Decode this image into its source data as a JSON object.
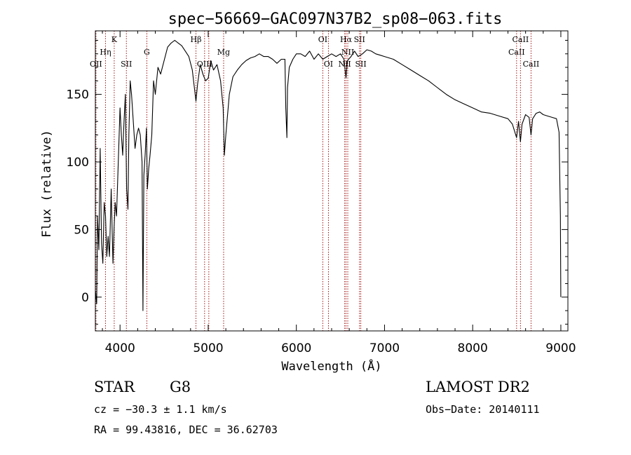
{
  "chart_data": {
    "type": "line",
    "title": "spec−56669−GAC097N37B2_sp08−063.fits",
    "xlabel": "Wavelength (Å)",
    "ylabel": "Flux (relative)",
    "xlim": [
      3720,
      9080
    ],
    "ylim": [
      -25,
      197
    ],
    "xticks": [
      4000,
      5000,
      6000,
      7000,
      8000,
      9000
    ],
    "yticks": [
      0,
      50,
      100,
      150
    ],
    "grid": false,
    "series": [
      {
        "x": [
          3720,
          3735,
          3745,
          3760,
          3775,
          3790,
          3805,
          3820,
          3835,
          3850,
          3865,
          3880,
          3900,
          3920,
          3933,
          3945,
          3960,
          3980,
          4000,
          4015,
          4030,
          4045,
          4060,
          4075,
          4090,
          4100,
          4115,
          4130,
          4150,
          4170,
          4190,
          4210,
          4230,
          4250,
          4260,
          4270,
          4285,
          4300,
          4310,
          4325,
          4340,
          4360,
          4380,
          4400,
          4430,
          4460,
          4500,
          4540,
          4580,
          4620,
          4660,
          4700,
          4740,
          4780,
          4820,
          4861,
          4880,
          4910,
          4940,
          4970,
          5000,
          5030,
          5060,
          5100,
          5140,
          5170,
          5183,
          5200,
          5240,
          5280,
          5330,
          5380,
          5430,
          5480,
          5530,
          5580,
          5630,
          5680,
          5730,
          5780,
          5830,
          5870,
          5880,
          5893,
          5900,
          5920,
          5960,
          6000,
          6050,
          6100,
          6150,
          6200,
          6250,
          6300,
          6350,
          6400,
          6450,
          6500,
          6540,
          6563,
          6580,
          6620,
          6660,
          6700,
          6750,
          6800,
          6850,
          6900,
          6950,
          7000,
          7100,
          7200,
          7300,
          7400,
          7500,
          7600,
          7700,
          7800,
          7900,
          8000,
          8100,
          8200,
          8300,
          8400,
          8450,
          8498,
          8520,
          8542,
          8560,
          8600,
          8640,
          8662,
          8680,
          8720,
          8760,
          8800,
          8850,
          8900,
          8950,
          8980,
          8995,
          9000
        ],
        "values": [
          5,
          -5,
          60,
          35,
          110,
          40,
          25,
          70,
          60,
          30,
          45,
          30,
          80,
          25,
          52,
          70,
          60,
          100,
          140,
          120,
          105,
          130,
          150,
          80,
          65,
          120,
          160,
          150,
          130,
          110,
          120,
          125,
          120,
          100,
          -10,
          90,
          105,
          125,
          80,
          95,
          105,
          120,
          160,
          150,
          170,
          165,
          175,
          185,
          188,
          190,
          188,
          186,
          182,
          178,
          168,
          145,
          158,
          172,
          165,
          160,
          162,
          175,
          168,
          172,
          160,
          140,
          105,
          120,
          150,
          163,
          168,
          172,
          175,
          177,
          178,
          180,
          178,
          178,
          176,
          173,
          176,
          176,
          140,
          118,
          155,
          170,
          176,
          180,
          180,
          178,
          182,
          176,
          180,
          176,
          178,
          180,
          178,
          180,
          176,
          162,
          175,
          178,
          182,
          178,
          180,
          183,
          182,
          180,
          179,
          178,
          176,
          172,
          168,
          164,
          160,
          155,
          150,
          146,
          143,
          140,
          137,
          136,
          134,
          132,
          128,
          118,
          130,
          115,
          128,
          135,
          133,
          120,
          132,
          136,
          137,
          135,
          134,
          133,
          132,
          122,
          60,
          0
        ]
      }
    ],
    "lines": [
      {
        "wl": 3727,
        "label": "OII",
        "row": 2
      },
      {
        "wl": 3835,
        "label": "Hη",
        "row": 1
      },
      {
        "wl": 3934,
        "label": "K",
        "row": 0
      },
      {
        "wl": 4072,
        "label": "SII",
        "row": 2
      },
      {
        "wl": 4304,
        "label": "G",
        "row": 1
      },
      {
        "wl": 4861,
        "label": "Hβ",
        "row": 0
      },
      {
        "wl": 4959,
        "label": "OIII",
        "row": 2
      },
      {
        "wl": 5007,
        "label": "",
        "row": 2
      },
      {
        "wl": 5175,
        "label": "Mg",
        "row": 1
      },
      {
        "wl": 6300,
        "label": "OI",
        "row": 0
      },
      {
        "wl": 6364,
        "label": "OI",
        "row": 2
      },
      {
        "wl": 6548,
        "label": "NII",
        "row": 2
      },
      {
        "wl": 6563,
        "label": "Hα",
        "row": 0
      },
      {
        "wl": 6583,
        "label": "NII",
        "row": 1
      },
      {
        "wl": 6716,
        "label": "SII",
        "row": 0
      },
      {
        "wl": 6731,
        "label": "SII",
        "row": 2
      },
      {
        "wl": 8498,
        "label": "CaII",
        "row": 1
      },
      {
        "wl": 8542,
        "label": "CaII",
        "row": 0
      },
      {
        "wl": 8662,
        "label": "CaII",
        "row": 2
      }
    ]
  },
  "info": {
    "class_label": "STAR",
    "subclass": "G8",
    "survey": "LAMOST DR2",
    "cz": "cz = −30.3 ± 1.1 km/s",
    "obs_date": "Obs−Date: 20140111",
    "radec": "RA =  99.43816, DEC =  36.62703"
  }
}
